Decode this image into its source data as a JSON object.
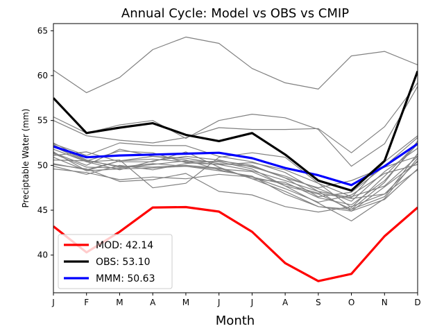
{
  "chart_data": {
    "type": "line",
    "title": "Annual Cycle: Model vs OBS vs CMIP",
    "xlabel": "Month",
    "ylabel": "Preciptable Water (mm)",
    "categories": [
      "J",
      "F",
      "M",
      "A",
      "M",
      "J",
      "J",
      "A",
      "S",
      "O",
      "N",
      "D"
    ],
    "ylim": [
      35.8,
      65.8
    ],
    "yticks": [
      40,
      45,
      50,
      55,
      60,
      65
    ],
    "grid": false,
    "legend_position": "lower-left",
    "series": [
      {
        "name": "MOD",
        "label": "MOD: 42.14",
        "color": "#ff0000",
        "values": [
          43.2,
          40.3,
          42.6,
          45.3,
          45.35,
          44.85,
          42.6,
          39.1,
          37.1,
          37.9,
          42.1,
          45.3
        ]
      },
      {
        "name": "OBS",
        "label": "OBS: 53.10",
        "color": "#000000",
        "values": [
          57.5,
          53.6,
          54.2,
          54.7,
          53.4,
          52.7,
          53.6,
          51.2,
          48.3,
          47.2,
          50.5,
          60.5
        ]
      },
      {
        "name": "MMM",
        "label": "MMM: 50.63",
        "color": "#0000ff",
        "values": [
          52.1,
          50.9,
          51.1,
          51.2,
          51.3,
          51.4,
          50.8,
          49.7,
          48.9,
          47.8,
          49.9,
          52.4
        ]
      }
    ],
    "cmip_color": "#808080",
    "cmip_members": [
      [
        60.6,
        58.1,
        59.8,
        62.9,
        64.3,
        63.6,
        60.8,
        59.2,
        58.5,
        62.2,
        62.7,
        61.2
      ],
      [
        55.4,
        53.6,
        54.5,
        55.0,
        53.0,
        55.0,
        55.7,
        55.3,
        54.0,
        49.9,
        52.4,
        58.8
      ],
      [
        55.0,
        53.3,
        52.8,
        52.5,
        53.1,
        54.2,
        54.0,
        54.0,
        54.1,
        51.4,
        54.3,
        59.2
      ],
      [
        51.5,
        49.4,
        50.5,
        50.7,
        50.4,
        50.1,
        50.3,
        49.5,
        48.0,
        46.5,
        47.7,
        51.0
      ],
      [
        52.3,
        50.5,
        51.6,
        51.4,
        50.3,
        50.1,
        49.4,
        48.3,
        47.1,
        44.9,
        47.6,
        50.4
      ],
      [
        49.6,
        49.2,
        48.4,
        48.7,
        48.5,
        49.0,
        48.7,
        47.9,
        46.9,
        46.3,
        46.8,
        49.5
      ],
      [
        52.5,
        50.6,
        49.8,
        50.2,
        49.9,
        49.6,
        49.3,
        47.7,
        46.8,
        45.1,
        46.5,
        51.3
      ],
      [
        51.1,
        51.5,
        50.4,
        50.4,
        51.5,
        49.8,
        48.5,
        48.1,
        46.4,
        45.6,
        48.3,
        52.4
      ],
      [
        50.2,
        49.5,
        50.5,
        51.0,
        50.6,
        49.5,
        48.7,
        47.4,
        45.9,
        46.7,
        49.1,
        50.1
      ],
      [
        52.1,
        50.4,
        50.6,
        47.5,
        48.0,
        50.9,
        51.4,
        50.9,
        48.0,
        45.3,
        48.8,
        52.5
      ],
      [
        50.6,
        50.5,
        49.9,
        49.8,
        50.0,
        49.7,
        48.5,
        47.1,
        45.4,
        45.1,
        48.1,
        52.7
      ],
      [
        52.4,
        51.1,
        52.5,
        52.2,
        52.2,
        51.0,
        50.4,
        49.2,
        47.1,
        46.4,
        50.4,
        53.3
      ],
      [
        51.8,
        50.4,
        49.5,
        50.5,
        51.0,
        50.6,
        49.8,
        48.8,
        47.4,
        46.0,
        49.3,
        51.9
      ],
      [
        49.9,
        49.0,
        50.0,
        49.5,
        50.2,
        50.5,
        50.0,
        48.6,
        47.5,
        48.3,
        49.8,
        51.0
      ],
      [
        50.9,
        49.4,
        49.6,
        49.7,
        49.9,
        49.4,
        48.8,
        46.8,
        45.4,
        44.9,
        46.2,
        49.6
      ],
      [
        51.3,
        49.8,
        49.7,
        50.1,
        50.5,
        50.4,
        49.6,
        47.7,
        45.8,
        43.8,
        46.3,
        50.8
      ],
      [
        50.1,
        49.6,
        48.2,
        48.4,
        49.1,
        47.1,
        46.7,
        45.4,
        44.8,
        45.4,
        46.8,
        50.5
      ],
      [
        51.4,
        50.0,
        51.8,
        51.0,
        50.8,
        50.2,
        49.9,
        48.6,
        46.5,
        47.0,
        49.9,
        53.1
      ]
    ]
  }
}
